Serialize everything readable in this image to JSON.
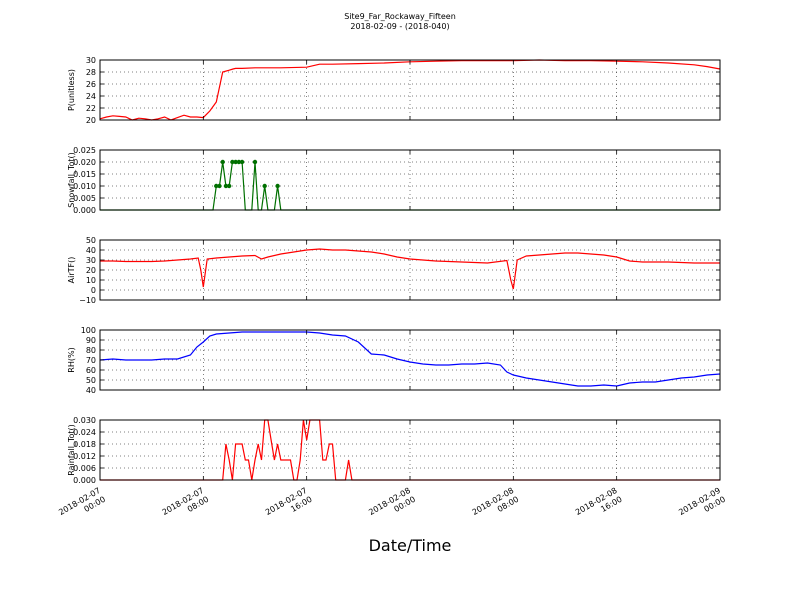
{
  "chart_data": {
    "type": "line",
    "title": "Site9_Far_Rockaway_Fifteen",
    "subtitle": "2018-02-09 - (2018-040)",
    "xlabel": "Date/Time",
    "x_ticks": [
      {
        "line1": "2018-02-07",
        "line2": "00:00",
        "hour": 0
      },
      {
        "line1": "2018-02-07",
        "line2": "08:00",
        "hour": 8
      },
      {
        "line1": "2018-02-07",
        "line2": "16:00",
        "hour": 16
      },
      {
        "line1": "2018-02-08",
        "line2": "00:00",
        "hour": 24
      },
      {
        "line1": "2018-02-08",
        "line2": "08:00",
        "hour": 32
      },
      {
        "line1": "2018-02-08",
        "line2": "16:00",
        "hour": 40
      },
      {
        "line1": "2018-02-09",
        "line2": "00:00",
        "hour": 48
      }
    ],
    "xlim": [
      0,
      48
    ],
    "grid": true,
    "panels": [
      {
        "ylabel": "P(unitless)",
        "color": "#ff0000",
        "ylim": [
          20,
          30
        ],
        "yticks": [
          "20",
          "22",
          "24",
          "26",
          "28",
          "30"
        ],
        "ytick_values": [
          20,
          22,
          24,
          26,
          28,
          30
        ],
        "markers": false,
        "series": {
          "x": [
            0,
            0.5,
            1,
            1.5,
            2,
            2.5,
            3,
            3.5,
            4,
            4.5,
            5,
            5.5,
            6,
            6.5,
            7,
            7.5,
            8,
            8.5,
            9,
            9.5,
            10,
            10.3,
            10.5,
            10.8,
            11,
            12,
            14,
            16,
            17,
            18,
            20,
            22,
            24,
            26,
            28,
            30,
            32,
            34,
            36,
            38,
            40,
            42,
            44,
            46,
            47,
            48
          ],
          "y": [
            20.2,
            20.5,
            20.7,
            20.6,
            20.5,
            20.0,
            20.3,
            20.2,
            20.0,
            20.2,
            20.5,
            20.0,
            20.4,
            20.8,
            20.5,
            20.5,
            20.4,
            21.5,
            23.0,
            28.0,
            28.3,
            28.5,
            28.6,
            28.6,
            28.6,
            28.7,
            28.7,
            28.8,
            29.3,
            29.3,
            29.4,
            29.5,
            29.7,
            29.8,
            29.9,
            29.9,
            29.9,
            30.0,
            29.9,
            29.9,
            29.8,
            29.7,
            29.5,
            29.2,
            28.9,
            28.5
          ]
        }
      },
      {
        "ylabel": "Snowfall_Tot()",
        "color": "#007000",
        "ylim": [
          0,
          0.025
        ],
        "yticks": [
          "0.000",
          "0.005",
          "0.010",
          "0.015",
          "0.020",
          "0.025"
        ],
        "ytick_values": [
          0,
          0.005,
          0.01,
          0.015,
          0.02,
          0.025
        ],
        "markers": true,
        "series": {
          "x": [
            0,
            8.75,
            9,
            9.25,
            9.5,
            9.75,
            10,
            10.25,
            10.5,
            10.75,
            11,
            11.25,
            11.5,
            11.75,
            12,
            12.25,
            12.5,
            12.75,
            13,
            13.25,
            13.5,
            13.75,
            14,
            14.25,
            14.5,
            48
          ],
          "y": [
            0,
            0,
            0.01,
            0.01,
            0.02,
            0.01,
            0.01,
            0.02,
            0.02,
            0.02,
            0.02,
            0,
            0,
            0,
            0.02,
            0,
            0,
            0.01,
            0,
            0,
            0,
            0.01,
            0,
            0,
            0,
            0
          ]
        }
      },
      {
        "ylabel": "AirTF()",
        "color": "#ff0000",
        "ylim": [
          -10,
          50
        ],
        "yticks": [
          "−10",
          "0",
          "10",
          "20",
          "30",
          "40",
          "50"
        ],
        "ytick_values": [
          -10,
          0,
          10,
          20,
          30,
          40,
          50
        ],
        "markers": false,
        "series": {
          "x": [
            0,
            1,
            2,
            3,
            4,
            5,
            6,
            7,
            7.6,
            7.8,
            8,
            8.3,
            9,
            10,
            11,
            12,
            12.5,
            13,
            14,
            15,
            16,
            17,
            18,
            19,
            20,
            21,
            22,
            23,
            24,
            26,
            28,
            30,
            31.5,
            31.8,
            32,
            32.3,
            33,
            34,
            35,
            36,
            37,
            38,
            39,
            40,
            41,
            42,
            44,
            46,
            48
          ],
          "y": [
            29,
            29,
            28.5,
            28.5,
            28.5,
            29,
            30,
            31,
            32,
            20,
            3,
            31,
            32,
            33,
            34,
            34.5,
            31,
            33,
            36,
            38,
            40,
            41,
            40,
            40,
            39,
            38,
            36,
            33,
            31,
            29,
            28,
            27,
            29.5,
            10,
            1,
            30,
            34,
            35,
            36,
            37,
            37,
            36,
            35,
            33,
            29,
            28,
            28,
            27,
            27
          ]
        }
      },
      {
        "ylabel": "RH(%)",
        "color": "#0000ff",
        "ylim": [
          40,
          100
        ],
        "yticks": [
          "40",
          "50",
          "60",
          "70",
          "80",
          "90",
          "100"
        ],
        "ytick_values": [
          40,
          50,
          60,
          70,
          80,
          90,
          100
        ],
        "markers": false,
        "series": {
          "x": [
            0,
            1,
            2,
            3,
            4,
            5,
            6,
            7,
            7.5,
            8,
            8.5,
            9,
            10,
            11,
            12,
            14,
            16,
            17,
            18,
            19,
            20,
            21,
            22,
            23,
            24,
            25,
            26,
            27,
            28,
            29,
            30,
            31,
            31.5,
            32,
            33,
            34,
            35,
            36,
            37,
            38,
            39,
            40,
            41,
            42,
            43,
            44,
            45,
            46,
            47,
            48
          ],
          "y": [
            70,
            71,
            70,
            70,
            70,
            71,
            71,
            75,
            83,
            88,
            94,
            96,
            97,
            98,
            98,
            98,
            98,
            97,
            95,
            94,
            88,
            76,
            75,
            71,
            68,
            66,
            65,
            65,
            66,
            66,
            67,
            65,
            58,
            55,
            52,
            50,
            48,
            46,
            44,
            44,
            45,
            44,
            47,
            48,
            48,
            50,
            52,
            53,
            55,
            56
          ]
        }
      },
      {
        "ylabel": "Rainfall_Tot()",
        "color": "#ff0000",
        "ylim": [
          0,
          0.03
        ],
        "yticks": [
          "0.000",
          "0.006",
          "0.012",
          "0.018",
          "0.024",
          "0.030"
        ],
        "ytick_values": [
          0,
          0.006,
          0.012,
          0.018,
          0.024,
          0.03
        ],
        "markers": false,
        "series": {
          "x": [
            0,
            9.5,
            9.75,
            10,
            10.25,
            10.5,
            10.75,
            11,
            11.25,
            11.5,
            11.75,
            12,
            12.25,
            12.5,
            12.75,
            13,
            13.25,
            13.5,
            13.75,
            14,
            14.25,
            14.5,
            14.75,
            15,
            15.25,
            15.5,
            15.75,
            16,
            16.25,
            16.5,
            16.75,
            17,
            17.25,
            17.5,
            17.75,
            18,
            18.25,
            18.5,
            18.75,
            19,
            19.25,
            19.5,
            19.75,
            20,
            48
          ],
          "y": [
            0,
            0,
            0.018,
            0.01,
            0,
            0.018,
            0.018,
            0.018,
            0.01,
            0.01,
            0,
            0.01,
            0.018,
            0.01,
            0.03,
            0.03,
            0.02,
            0.01,
            0.018,
            0.01,
            0.01,
            0.01,
            0.01,
            0,
            0,
            0.01,
            0.03,
            0.02,
            0.03,
            0.03,
            0.03,
            0.03,
            0.01,
            0.01,
            0.018,
            0.018,
            0,
            0,
            0,
            0,
            0.01,
            0,
            0,
            0,
            0
          ]
        }
      }
    ]
  }
}
